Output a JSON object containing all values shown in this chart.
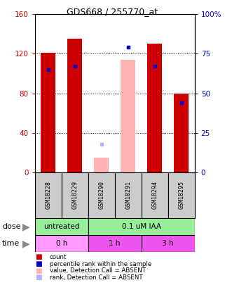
{
  "title": "GDS668 / 255770_at",
  "samples": [
    "GSM18228",
    "GSM18229",
    "GSM18290",
    "GSM18291",
    "GSM18294",
    "GSM18295"
  ],
  "ylim_left": [
    0,
    160
  ],
  "ylim_right": [
    0,
    100
  ],
  "yticks_left": [
    0,
    40,
    80,
    120,
    160
  ],
  "yticks_right": [
    0,
    25,
    50,
    75,
    100
  ],
  "yticklabels_right": [
    "0",
    "25",
    "50",
    "75",
    "100%"
  ],
  "red_bars": [
    121,
    135,
    0,
    0,
    130,
    80
  ],
  "blue_markers_pct": [
    65,
    67,
    0,
    79,
    67,
    44
  ],
  "pink_bars": [
    0,
    0,
    15,
    114,
    0,
    0
  ],
  "lightblue_markers_pct": [
    0,
    0,
    18,
    79,
    0,
    0
  ],
  "red_color": "#cc0000",
  "blue_color": "#0000cc",
  "pink_color": "#ffb3b3",
  "lightblue_color": "#b3b3ff",
  "bar_width": 0.55,
  "legend_items": [
    {
      "color": "#cc0000",
      "label": "count"
    },
    {
      "color": "#0000cc",
      "label": "percentile rank within the sample"
    },
    {
      "color": "#ffb3b3",
      "label": "value, Detection Call = ABSENT"
    },
    {
      "color": "#b3b3ff",
      "label": "rank, Detection Call = ABSENT"
    }
  ]
}
